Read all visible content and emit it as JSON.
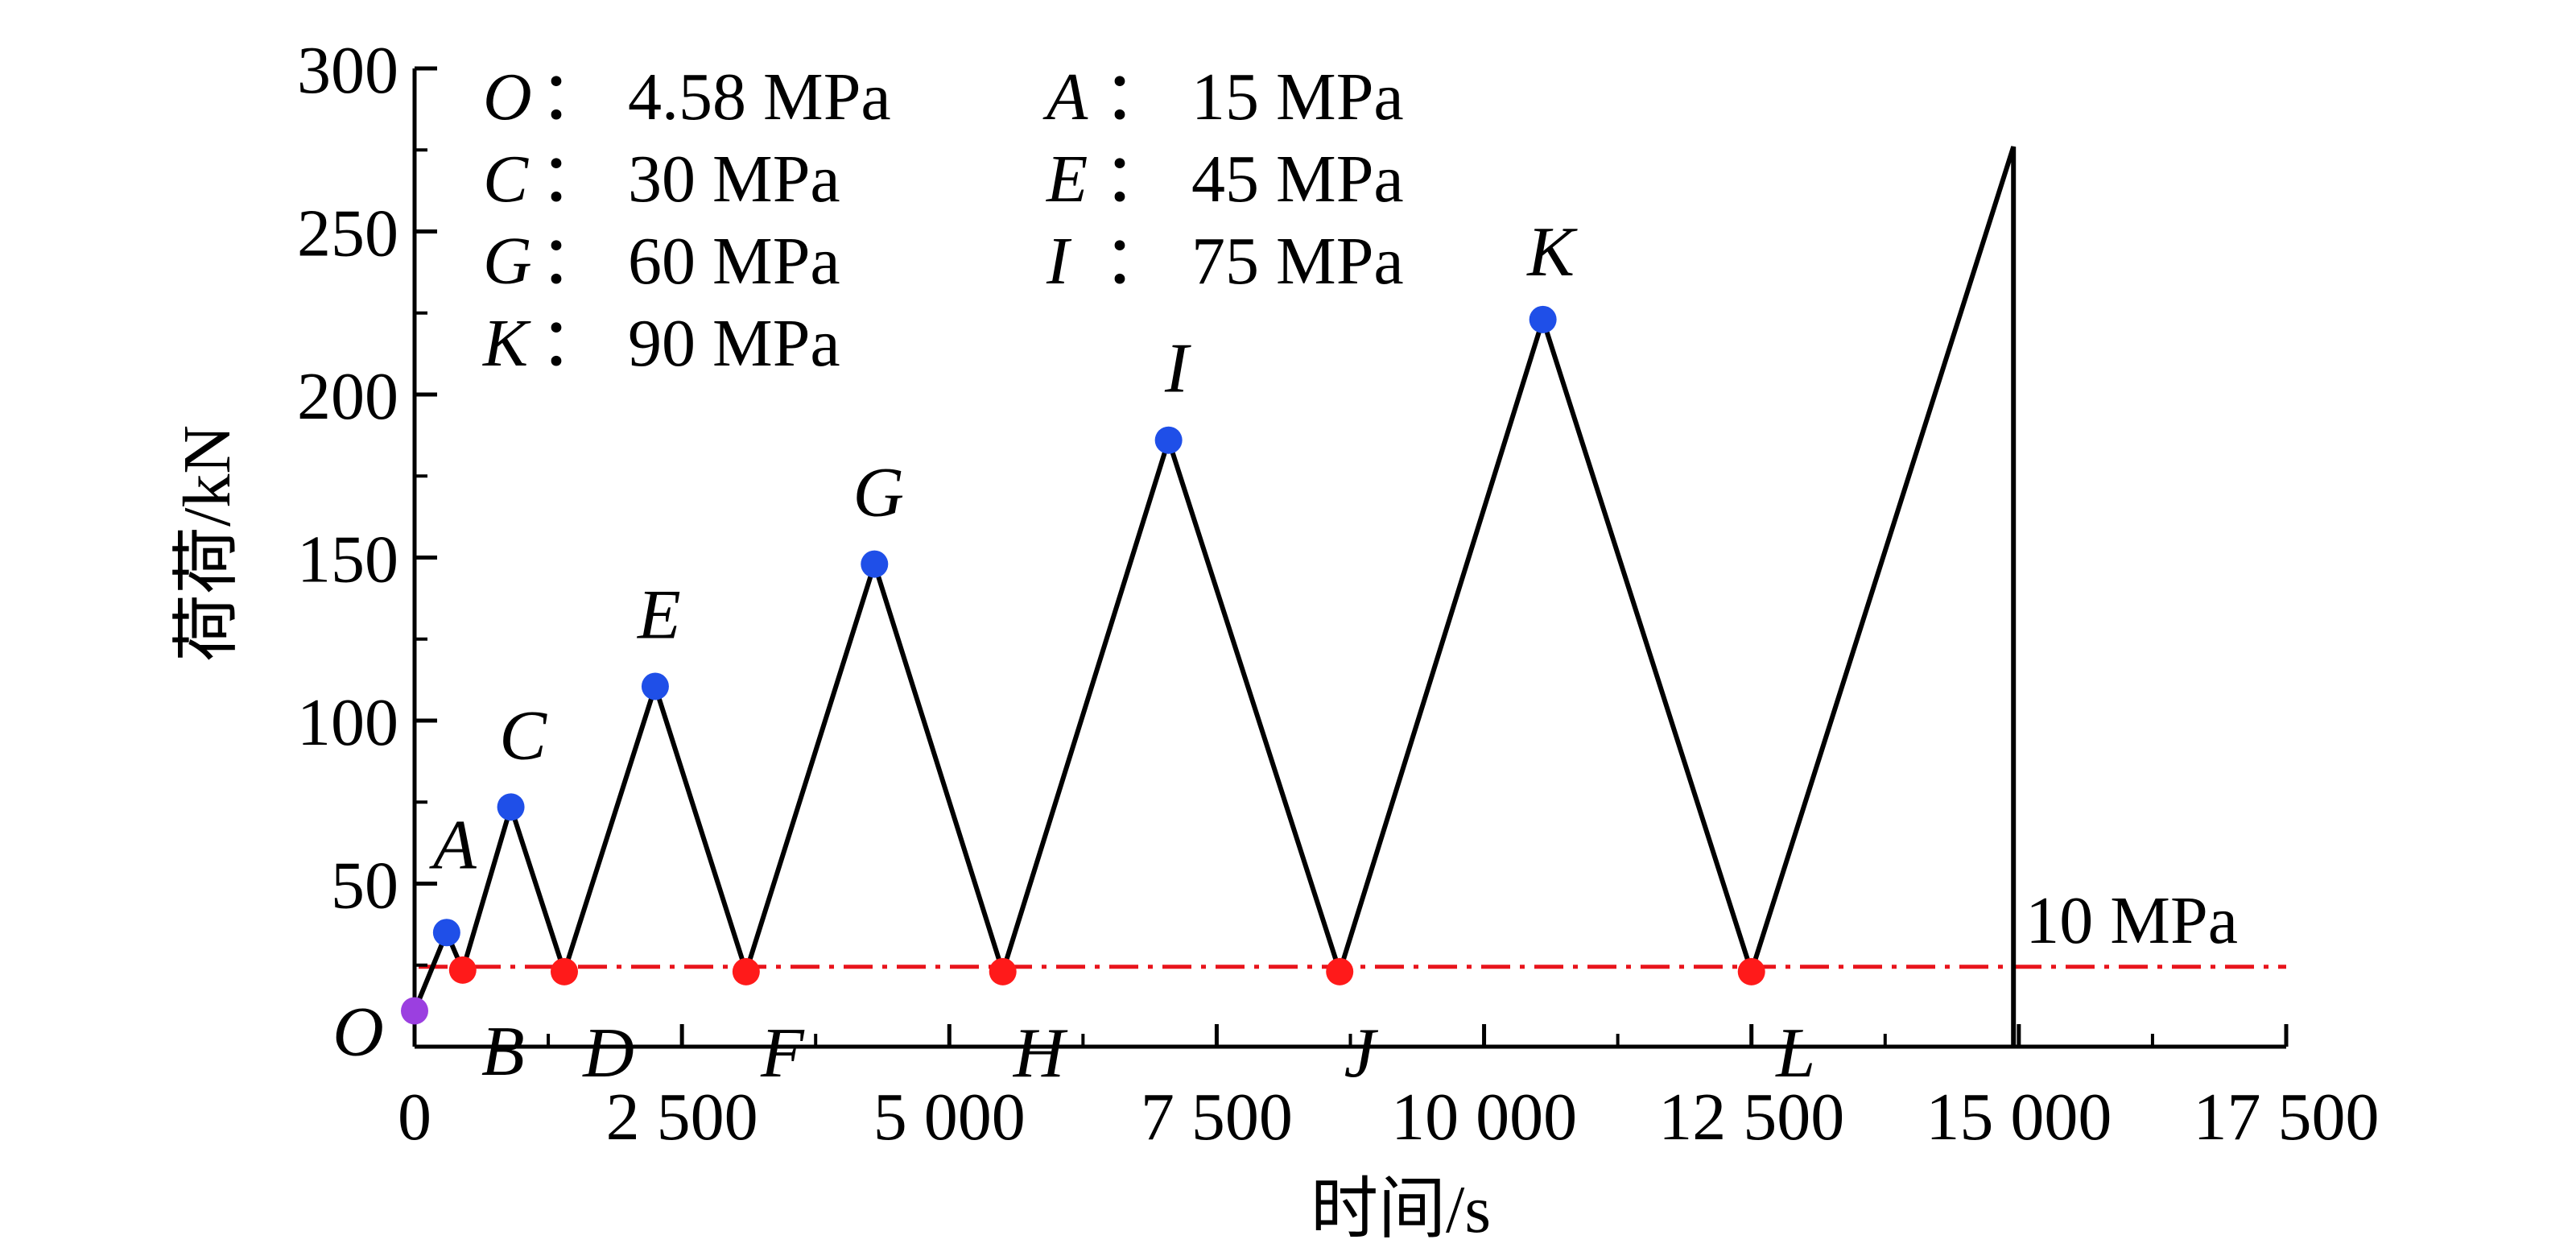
{
  "chart_data": {
    "type": "line",
    "xlabel": "时间/s",
    "ylabel": "荷荷/kN",
    "xlim": [
      0,
      17500
    ],
    "ylim": [
      0,
      300
    ],
    "x_ticks": [
      {
        "value": 0,
        "label": "0"
      },
      {
        "value": 2500,
        "label": "2 500"
      },
      {
        "value": 5000,
        "label": "5 000"
      },
      {
        "value": 7500,
        "label": "7 500"
      },
      {
        "value": 10000,
        "label": "10 000"
      },
      {
        "value": 12500,
        "label": "12 500"
      },
      {
        "value": 15000,
        "label": "15 000"
      },
      {
        "value": 17500,
        "label": "17 500"
      }
    ],
    "y_ticks": [
      {
        "value": 50,
        "label": "50"
      },
      {
        "value": 100,
        "label": "100"
      },
      {
        "value": 150,
        "label": "150"
      },
      {
        "value": 200,
        "label": "200"
      },
      {
        "value": 250,
        "label": "250"
      },
      {
        "value": 300,
        "label": "300"
      }
    ],
    "series": [
      {
        "x": [
          0,
          300,
          450,
          900,
          1400,
          2250,
          3100,
          4300,
          5500,
          7050,
          8650,
          10550,
          12500,
          14950,
          14950
        ],
        "y": [
          11,
          35,
          23.5,
          73.5,
          23,
          110.5,
          23,
          148,
          23,
          186,
          23,
          223,
          23,
          276,
          0
        ],
        "color": "#000000"
      }
    ],
    "points": [
      {
        "label": "O",
        "x": 0,
        "y": 11,
        "color": "#9b3fe0"
      },
      {
        "label": "A",
        "x": 300,
        "y": 35,
        "color": "#1f4fe8"
      },
      {
        "label": "B",
        "x": 450,
        "y": 23.5,
        "color": "#ff1a1a"
      },
      {
        "label": "C",
        "x": 900,
        "y": 73.5,
        "color": "#1f4fe8"
      },
      {
        "label": "D",
        "x": 1400,
        "y": 23,
        "color": "#ff1a1a"
      },
      {
        "label": "E",
        "x": 2250,
        "y": 110.5,
        "color": "#1f4fe8"
      },
      {
        "label": "F",
        "x": 3100,
        "y": 23,
        "color": "#ff1a1a"
      },
      {
        "label": "G",
        "x": 4300,
        "y": 148,
        "color": "#1f4fe8"
      },
      {
        "label": "H",
        "x": 5500,
        "y": 23,
        "color": "#ff1a1a"
      },
      {
        "label": "I",
        "x": 7050,
        "y": 186,
        "color": "#1f4fe8"
      },
      {
        "label": "J",
        "x": 8650,
        "y": 23,
        "color": "#ff1a1a"
      },
      {
        "label": "K",
        "x": 10550,
        "y": 223,
        "color": "#1f4fe8"
      },
      {
        "label": "L",
        "x": 12500,
        "y": 23,
        "color": "#ff1a1a"
      }
    ],
    "reference_line": {
      "y": 24.5,
      "label": "10 MPa",
      "color": "#e8141c",
      "style": "dash-dot"
    },
    "legend": [
      {
        "key": "O",
        "value": "4.58 MPa"
      },
      {
        "key": "A",
        "value": "15 MPa"
      },
      {
        "key": "C",
        "value": "30 MPa"
      },
      {
        "key": "E",
        "value": "45 MPa"
      },
      {
        "key": "G",
        "value": "60 MPa"
      },
      {
        "key": "I",
        "value": "75 MPa"
      },
      {
        "key": "K",
        "value": "90 MPa"
      }
    ],
    "legend_separator": "：",
    "legend_placement": "top-left",
    "grid": false
  }
}
